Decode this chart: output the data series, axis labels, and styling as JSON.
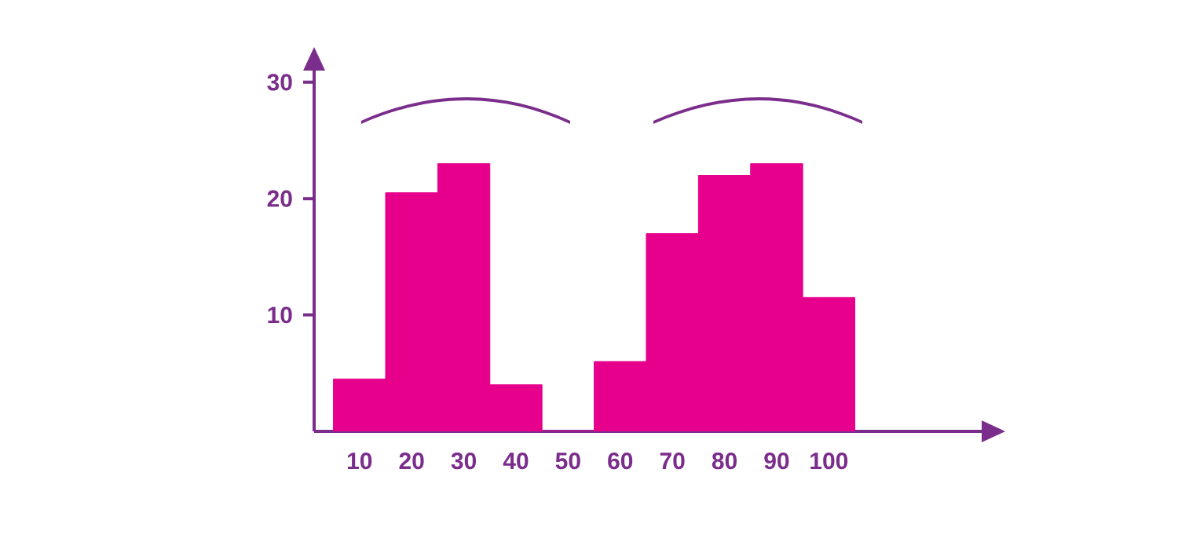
{
  "chart_data": {
    "type": "bar",
    "categories": [
      "10",
      "20",
      "30",
      "40",
      "50",
      "60",
      "70",
      "80",
      "90",
      "100"
    ],
    "values": [
      4.5,
      20.5,
      23,
      4,
      0,
      6,
      17,
      22,
      23,
      11.5
    ],
    "color": "#e6008c",
    "ylim": [
      0,
      31
    ],
    "yticks": [
      10,
      20,
      30
    ],
    "grid": false
  }
}
